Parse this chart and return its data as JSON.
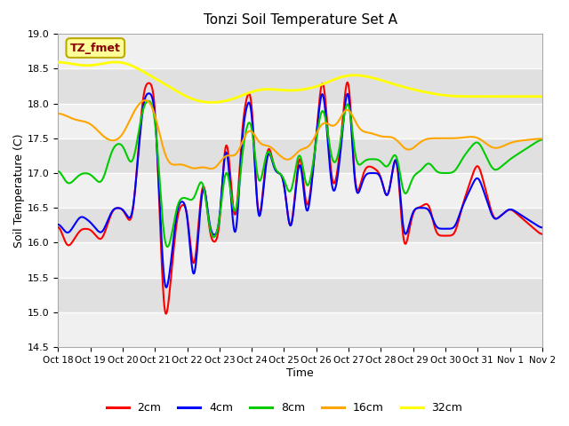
{
  "title": "Tonzi Soil Temperature Set A",
  "xlabel": "Time",
  "ylabel": "Soil Temperature (C)",
  "ylim": [
    14.5,
    19.0
  ],
  "yticks": [
    14.5,
    15.0,
    15.5,
    16.0,
    16.5,
    17.0,
    17.5,
    18.0,
    18.5,
    19.0
  ],
  "xtick_labels": [
    "Oct 18",
    "Oct 19",
    "Oct 20",
    "Oct 21",
    "Oct 22",
    "Oct 23",
    "Oct 24",
    "Oct 25",
    "Oct 26",
    "Oct 27",
    "Oct 28",
    "Oct 29",
    "Oct 30",
    "Oct 31",
    "Nov 1",
    "Nov 2"
  ],
  "colors": {
    "2cm": "#FF0000",
    "4cm": "#0000FF",
    "8cm": "#00CC00",
    "16cm": "#FFA500",
    "32cm": "#FFFF00"
  },
  "legend_label_box": "TZ_fmet",
  "bg_color": "#FFFFFF",
  "plot_bg_light": "#F0F0F0",
  "plot_bg_dark": "#E0E0E0",
  "grid_color": "#FFFFFF",
  "annotation_box_facecolor": "#FFFF99",
  "annotation_text_color": "#880000",
  "annotation_box_edgecolor": "#BBAA00",
  "n_days": 15,
  "pts_per_day": 96
}
